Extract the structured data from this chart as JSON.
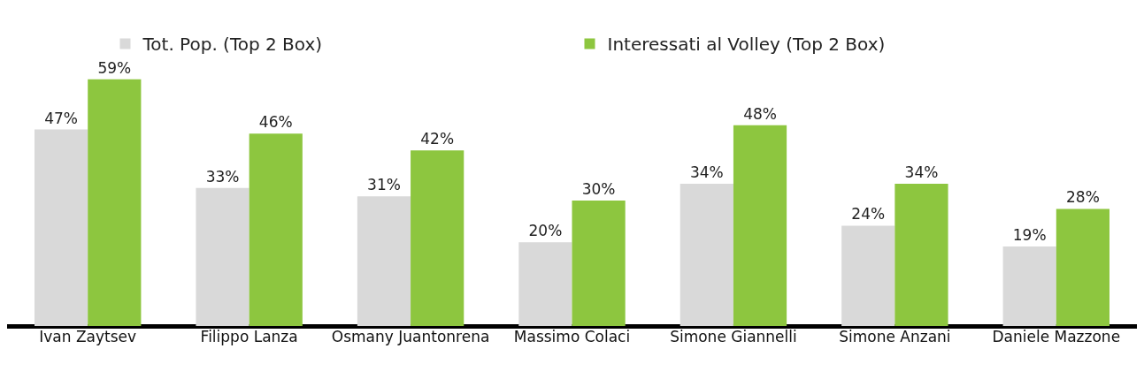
{
  "chart_data": {
    "type": "bar",
    "categories": [
      "Ivan Zaytsev",
      "Filippo Lanza",
      "Osmany Juantonrena",
      "Massimo Colaci",
      "Simone Giannelli",
      "Simone Anzani",
      "Daniele Mazzone"
    ],
    "series": [
      {
        "name": "Tot. Pop. (Top 2 Box)",
        "color": "#d9d9d9",
        "values": [
          47,
          33,
          31,
          20,
          34,
          24,
          19
        ],
        "value_labels": [
          "47%",
          "33%",
          "31%",
          "20%",
          "34%",
          "24%",
          "19%"
        ]
      },
      {
        "name": "Interessati al Volley (Top 2 Box)",
        "color": "#8dc63f",
        "values": [
          59,
          46,
          42,
          30,
          48,
          34,
          28
        ],
        "value_labels": [
          "59%",
          "46%",
          "42%",
          "30%",
          "48%",
          "34%",
          "28%"
        ]
      }
    ],
    "legend": "top",
    "grid": false
  }
}
